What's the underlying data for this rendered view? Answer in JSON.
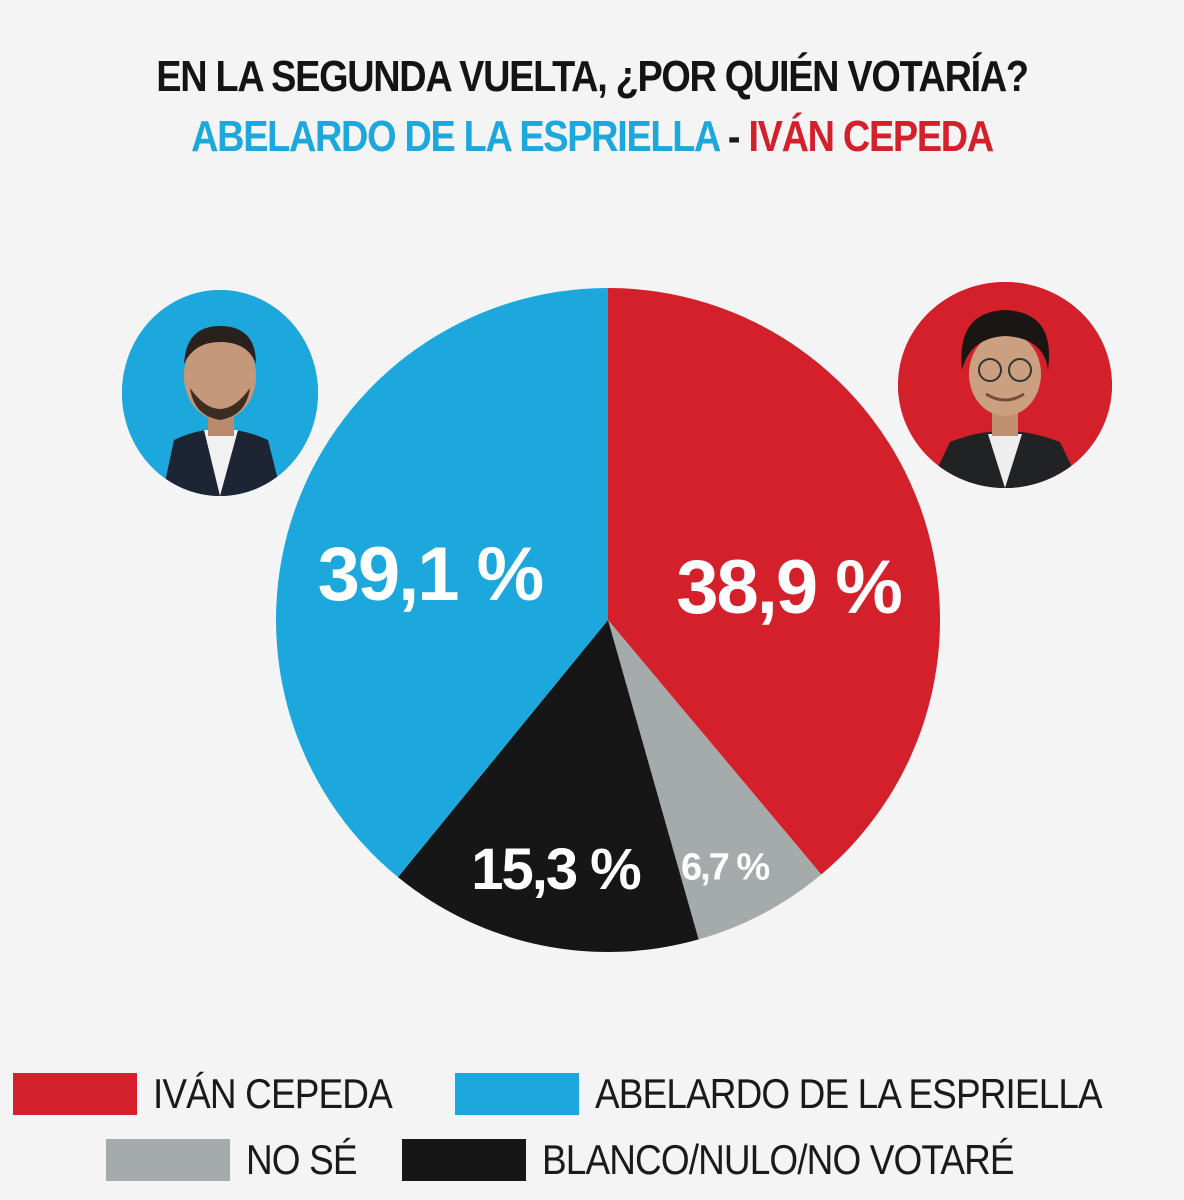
{
  "title": "EN LA SEGUNDA VUELTA, ¿POR QUIÉN VOTARÍA?",
  "subtitle": {
    "left": "ABELARDO DE LA ESPRIELLA",
    "separator": "-",
    "right": "IVÁN CEPEDA"
  },
  "colors": {
    "cepeda": "#d3202a",
    "espriella": "#1ca7dd",
    "nose": "#a5abaa",
    "blanco": "#161616"
  },
  "avatars": {
    "left_icon": "person-photo-espriella",
    "right_icon": "person-photo-cepeda"
  },
  "chart_data": {
    "type": "pie",
    "title": "EN LA SEGUNDA VUELTA, ¿POR QUIÉN VOTARÍA?",
    "slices": [
      {
        "name": "IVÁN CEPEDA",
        "value": 38.9,
        "label": "38,9 %",
        "color": "#d3202a"
      },
      {
        "name": "NO SÉ",
        "value": 6.7,
        "label": "6,7 %",
        "color": "#a5abaa"
      },
      {
        "name": "BLANCO/NULO/NO VOTARÉ",
        "value": 15.3,
        "label": "15,3 %",
        "color": "#161616"
      },
      {
        "name": "ABELARDO DE LA ESPRIELLA",
        "value": 39.1,
        "label": "39,1 %",
        "color": "#1ca7dd"
      }
    ],
    "start": "top, clockwise",
    "legend_position": "bottom"
  },
  "legend": {
    "row1": [
      {
        "label": "IVÁN CEPEDA",
        "color": "#d3202a"
      },
      {
        "label": "ABELARDO DE LA ESPRIELLA",
        "color": "#1ca7dd"
      }
    ],
    "row2": [
      {
        "label": "NO SÉ",
        "color": "#a5abaa"
      },
      {
        "label": "BLANCO/NULO/NO VOTARÉ",
        "color": "#161616"
      }
    ]
  }
}
